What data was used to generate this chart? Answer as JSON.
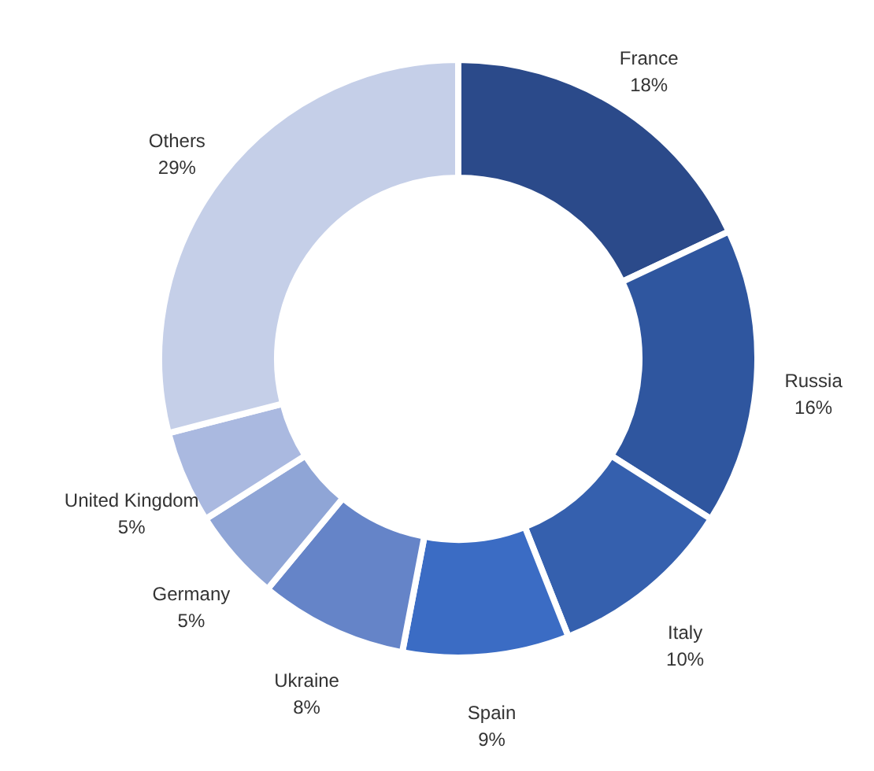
{
  "chart_data": {
    "type": "donut",
    "categories": [
      "France",
      "Russia",
      "Italy",
      "Spain",
      "Ukraine",
      "Germany",
      "United Kingdom",
      "Others"
    ],
    "values": [
      18,
      16,
      10,
      9,
      8,
      5,
      5,
      29
    ],
    "value_labels": [
      "18%",
      "16%",
      "10%",
      "9%",
      "8%",
      "5%",
      "5%",
      "29%"
    ],
    "colors": [
      "#2b4a8a",
      "#2f569f",
      "#3560ae",
      "#3b6cc4",
      "#6584c8",
      "#8fa5d6",
      "#aab9e0",
      "#c5cfe8"
    ]
  }
}
